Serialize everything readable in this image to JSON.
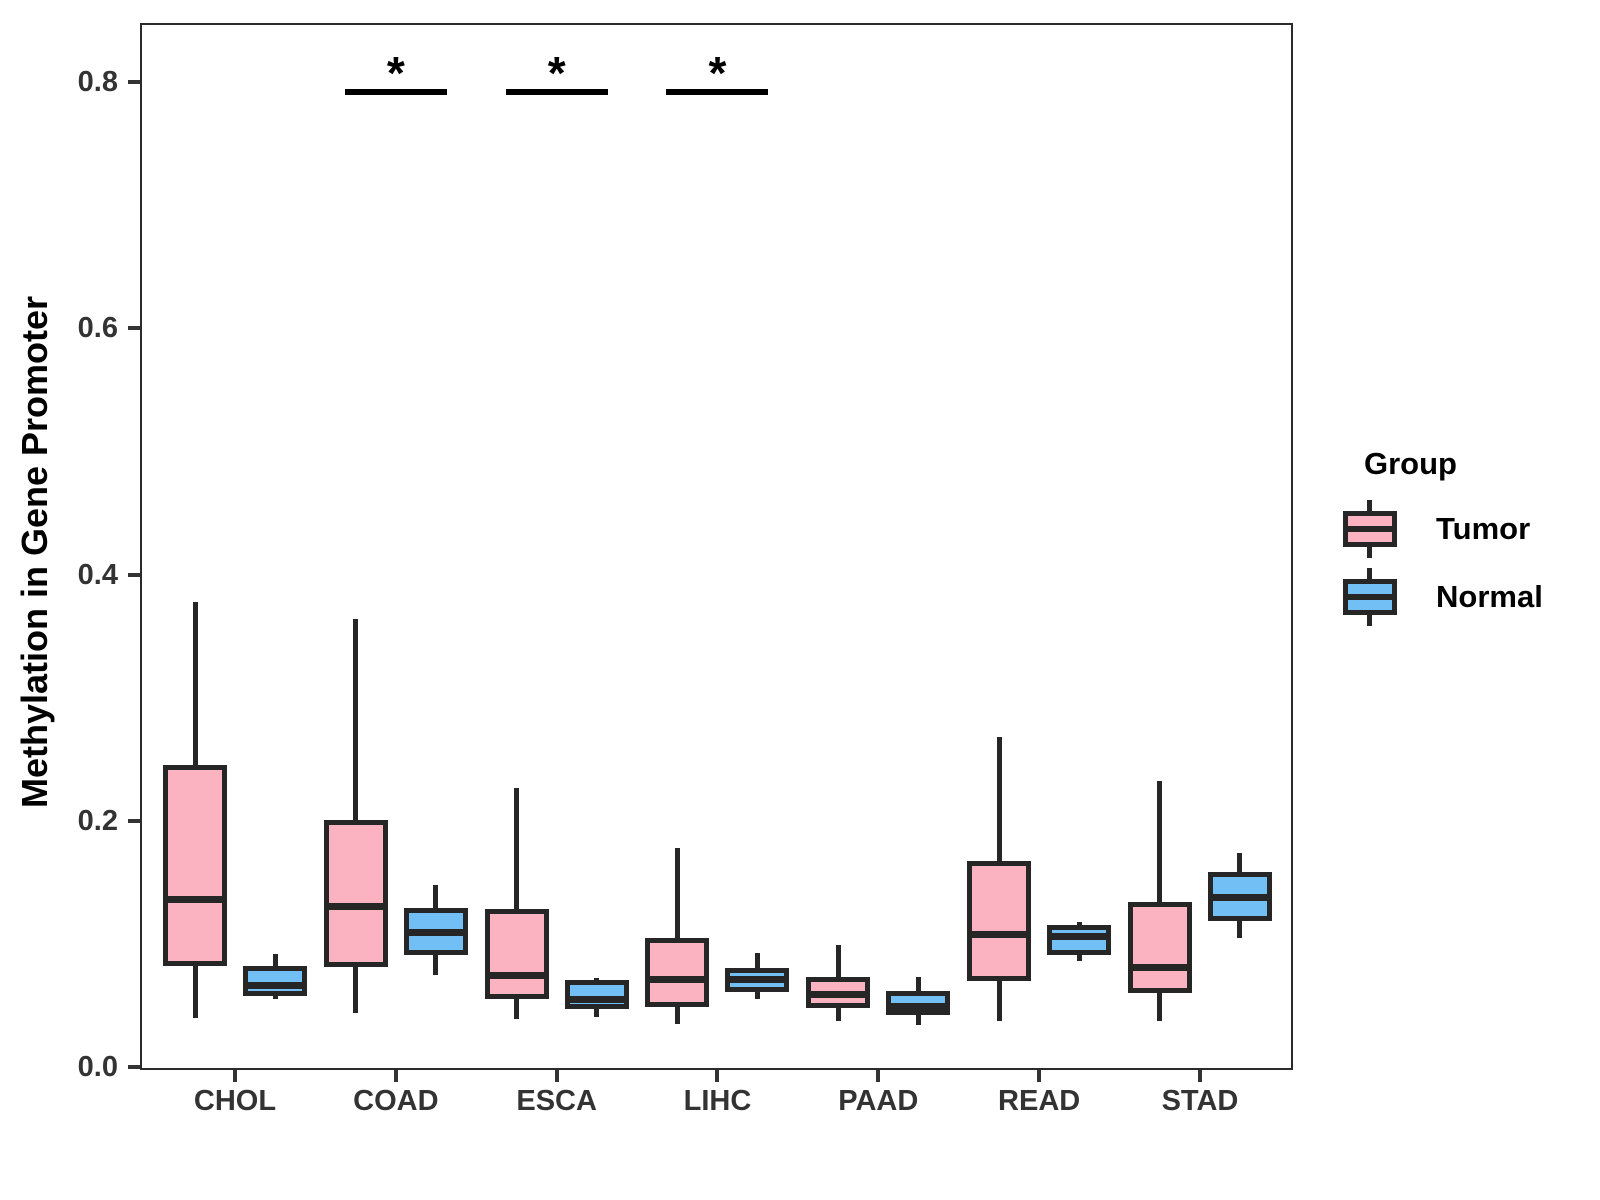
{
  "legend": {
    "title": "Group",
    "items": [
      {
        "label": "Tumor",
        "color": "#FBB3C2"
      },
      {
        "label": "Normal",
        "color": "#72BFF5"
      }
    ]
  },
  "y_axis": {
    "label": "Methylation in Gene Promoter",
    "ticks": [
      "0.0",
      "0.2",
      "0.4",
      "0.6",
      "0.8"
    ],
    "tick_values": [
      0,
      0.2,
      0.4,
      0.6,
      0.8
    ]
  },
  "x_axis": {
    "categories": [
      "CHOL",
      "COAD",
      "ESCA",
      "LIHC",
      "PAAD",
      "READ",
      "STAD"
    ]
  },
  "chart_data": {
    "type": "boxplot",
    "title": "",
    "xlabel": "",
    "ylabel": "Methylation in Gene Promoter",
    "ylim": [
      0,
      0.85
    ],
    "grid": false,
    "legend_position": "right",
    "categories": [
      "CHOL",
      "COAD",
      "ESCA",
      "LIHC",
      "PAAD",
      "READ",
      "STAD"
    ],
    "series": [
      {
        "name": "Tumor",
        "color": "#FBB3C2",
        "boxes": [
          {
            "min": 0.04,
            "q1": 0.084,
            "median": 0.136,
            "q3": 0.243,
            "max": 0.378
          },
          {
            "min": 0.044,
            "q1": 0.083,
            "median": 0.13,
            "q3": 0.199,
            "max": 0.364
          },
          {
            "min": 0.039,
            "q1": 0.057,
            "median": 0.074,
            "q3": 0.126,
            "max": 0.227
          },
          {
            "min": 0.035,
            "q1": 0.051,
            "median": 0.071,
            "q3": 0.103,
            "max": 0.178
          },
          {
            "min": 0.037,
            "q1": 0.05,
            "median": 0.059,
            "q3": 0.071,
            "max": 0.099
          },
          {
            "min": 0.037,
            "q1": 0.072,
            "median": 0.108,
            "q3": 0.165,
            "max": 0.268
          },
          {
            "min": 0.037,
            "q1": 0.062,
            "median": 0.081,
            "q3": 0.132,
            "max": 0.232
          }
        ]
      },
      {
        "name": "Normal",
        "color": "#72BFF5",
        "boxes": [
          {
            "min": 0.055,
            "q1": 0.06,
            "median": 0.066,
            "q3": 0.08,
            "max": 0.092
          },
          {
            "min": 0.075,
            "q1": 0.093,
            "median": 0.109,
            "q3": 0.127,
            "max": 0.148
          },
          {
            "min": 0.041,
            "q1": 0.049,
            "median": 0.055,
            "q3": 0.069,
            "max": 0.072
          },
          {
            "min": 0.055,
            "q1": 0.063,
            "median": 0.071,
            "q3": 0.078,
            "max": 0.093
          },
          {
            "min": 0.034,
            "q1": 0.044,
            "median": 0.049,
            "q3": 0.06,
            "max": 0.073
          },
          {
            "min": 0.086,
            "q1": 0.093,
            "median": 0.106,
            "q3": 0.113,
            "max": 0.118
          },
          {
            "min": 0.105,
            "q1": 0.121,
            "median": 0.138,
            "q3": 0.156,
            "max": 0.174
          }
        ]
      }
    ],
    "significance": [
      {
        "category": "COAD",
        "label": "*"
      },
      {
        "category": "ESCA",
        "label": "*"
      },
      {
        "category": "LIHC",
        "label": "*"
      }
    ]
  }
}
